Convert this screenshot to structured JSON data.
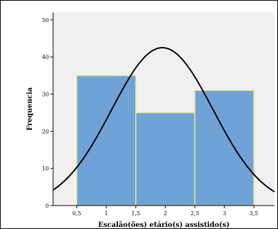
{
  "chart_data": {
    "type": "bar",
    "subtype": "histogram",
    "bins": [
      {
        "start": 0.5,
        "end": 1.5,
        "value": 35
      },
      {
        "start": 1.5,
        "end": 2.5,
        "value": 25
      },
      {
        "start": 2.5,
        "end": 3.5,
        "value": 31
      }
    ],
    "normal_curve": {
      "mean": 1.95,
      "sd": 0.86,
      "peak": 42.5
    },
    "xlabel": "Escalão(ões) etário(s) assistido(s)",
    "ylabel": "Frequencia",
    "xticks": [
      "0,5",
      "1",
      "1,5",
      "2",
      "2,5",
      "3",
      "3,5"
    ],
    "xtick_values": [
      0.5,
      1,
      1.5,
      2,
      2.5,
      3,
      3.5
    ],
    "yticks": [
      "0",
      "10",
      "20",
      "30",
      "40",
      "50"
    ],
    "ytick_values": [
      0,
      10,
      20,
      30,
      40,
      50
    ],
    "xlim": [
      0.1,
      3.85
    ],
    "ylim": [
      0,
      52
    ],
    "grid": false,
    "colors": {
      "plot_background": "#f0f0f0",
      "bar_fill": "#6fa3d8",
      "bar_edge": "#e6e68c",
      "curve": "#000000"
    }
  }
}
